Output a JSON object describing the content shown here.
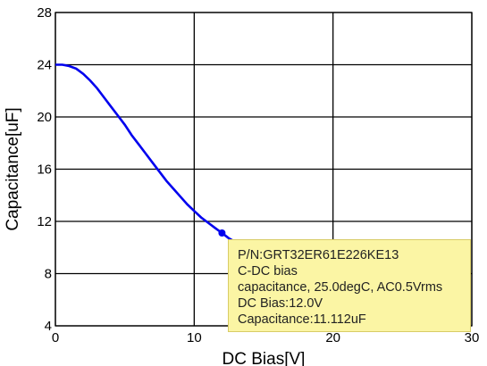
{
  "chart_data": {
    "type": "line",
    "title": "",
    "xlabel": "DC Bias[V]",
    "ylabel": "Capacitance[uF]",
    "xlim": [
      0,
      30
    ],
    "ylim": [
      4,
      28
    ],
    "x_ticks": [
      0,
      10,
      20,
      30
    ],
    "y_ticks": [
      4,
      8,
      12,
      16,
      20,
      24,
      28
    ],
    "grid": true,
    "line_color": "#0000ee",
    "series": [
      {
        "x": [
          0,
          0.5,
          1,
          1.5,
          2,
          2.5,
          3,
          3.5,
          4,
          4.5,
          5,
          5.5,
          6,
          6.5,
          7,
          7.5,
          8,
          8.5,
          9,
          9.5,
          10,
          10.5,
          11,
          11.5,
          12,
          12.5,
          13
        ],
        "y": [
          24.0,
          24.0,
          23.9,
          23.7,
          23.3,
          22.8,
          22.2,
          21.5,
          20.8,
          20.1,
          19.4,
          18.6,
          17.9,
          17.2,
          16.5,
          15.8,
          15.1,
          14.5,
          13.9,
          13.3,
          12.8,
          12.3,
          11.9,
          11.5,
          11.112,
          10.7,
          10.4
        ]
      }
    ],
    "marker": {
      "x": 12.0,
      "y": 11.112
    }
  },
  "tooltip": {
    "background": "#fbf5a4",
    "lines": [
      "P/N:GRT32ER61E226KE13",
      "C-DC bias",
      "capacitance, 25.0degC, AC0.5Vrms",
      "DC Bias:12.0V",
      "Capacitance:11.112uF"
    ]
  }
}
